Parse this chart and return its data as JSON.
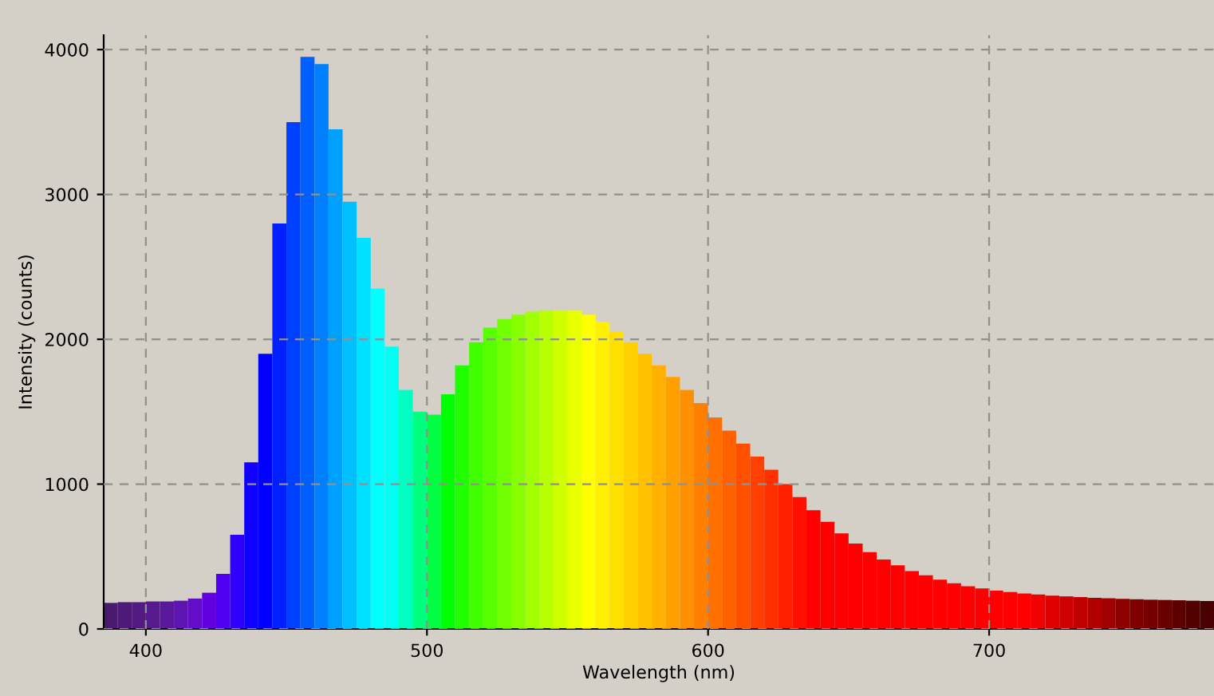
{
  "chart_data": {
    "type": "histogram",
    "xlabel": "Wavelength (nm)",
    "ylabel": "Intensity (counts)",
    "bins": [
      385,
      390,
      395,
      400,
      405,
      410,
      415,
      420,
      425,
      430,
      435,
      440,
      445,
      450,
      455,
      460,
      465,
      470,
      475,
      480,
      485,
      490,
      495,
      500,
      505,
      510,
      515,
      520,
      525,
      530,
      535,
      540,
      545,
      550,
      555,
      560,
      565,
      570,
      575,
      580,
      585,
      590,
      595,
      600,
      605,
      610,
      615,
      620,
      625,
      630,
      635,
      640,
      645,
      650,
      655,
      660,
      665,
      670,
      675,
      680,
      685,
      690,
      695,
      700,
      705,
      710,
      715,
      720,
      725,
      730,
      735,
      740,
      745,
      750,
      755,
      760,
      765,
      770,
      775,
      780
    ],
    "values": [
      180,
      185,
      185,
      190,
      190,
      195,
      210,
      250,
      380,
      650,
      1150,
      1900,
      2800,
      3500,
      3950,
      3900,
      3450,
      2950,
      2700,
      2350,
      1950,
      1650,
      1500,
      1480,
      1620,
      1820,
      1980,
      2080,
      2140,
      2170,
      2190,
      2200,
      2200,
      2200,
      2170,
      2120,
      2050,
      1980,
      1900,
      1820,
      1740,
      1650,
      1560,
      1460,
      1370,
      1280,
      1190,
      1100,
      1000,
      910,
      820,
      740,
      660,
      590,
      530,
      480,
      440,
      400,
      370,
      340,
      315,
      295,
      280,
      265,
      255,
      245,
      238,
      230,
      225,
      220,
      215,
      212,
      208,
      205,
      202,
      200,
      198,
      195,
      193
    ],
    "colors": [
      "#4a1a6e",
      "#4e1a78",
      "#521a82",
      "#561a8e",
      "#5a189c",
      "#5e14b0",
      "#620ec8",
      "#6200e0",
      "#5000f0",
      "#3000ff",
      "#1000ff",
      "#0000ff",
      "#0020ff",
      "#0040ff",
      "#0060ff",
      "#0080ff",
      "#00a0ff",
      "#00c0ff",
      "#00e0ff",
      "#00ffff",
      "#00fff0",
      "#00ffc0",
      "#00ff80",
      "#00ff40",
      "#00ff00",
      "#20ff00",
      "#40ff00",
      "#58ff00",
      "#70ff00",
      "#88ff00",
      "#a0ff00",
      "#b8ff00",
      "#d0ff00",
      "#e8ff00",
      "#ffff00",
      "#fff000",
      "#ffe000",
      "#ffd000",
      "#ffc000",
      "#ffb000",
      "#ffa000",
      "#ff9000",
      "#ff8000",
      "#ff7000",
      "#ff6000",
      "#ff5000",
      "#ff4000",
      "#ff3000",
      "#ff2000",
      "#ff1000",
      "#ff0000",
      "#ff0000",
      "#ff0000",
      "#ff0000",
      "#ff0000",
      "#ff0000",
      "#ff0000",
      "#ff0000",
      "#ff0000",
      "#ff0000",
      "#ff0000",
      "#ff0000",
      "#ff0000",
      "#ff0000",
      "#ff0000",
      "#ff0000",
      "#f00000",
      "#e00000",
      "#d00000",
      "#c00000",
      "#b00000",
      "#a00000",
      "#900000",
      "#800000",
      "#740000",
      "#680000",
      "#5c0000",
      "#520000",
      "#480000"
    ],
    "xlim": [
      385,
      780
    ],
    "ylim": [
      0,
      4100
    ],
    "xticks": [
      400,
      500,
      600,
      700
    ],
    "yticks": [
      0,
      1000,
      2000,
      3000,
      4000
    ],
    "grid": true
  }
}
